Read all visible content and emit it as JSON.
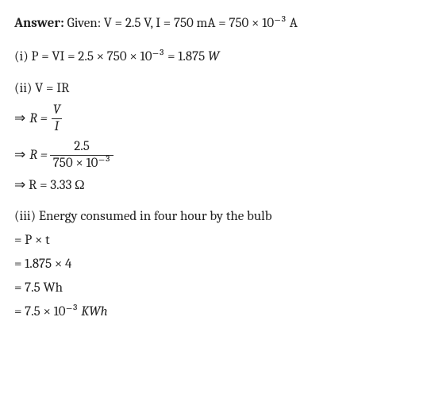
{
  "answer": {
    "label": "Answer:",
    "given": "Given: V = 2.5 V, I = 750 mA = 750 × 10⁻³ A"
  },
  "part1": {
    "eq": "(i) P = VI = 2.5 × 750 × 10⁻³ = 1.875",
    "unit": "W"
  },
  "part2": {
    "heading": "(ii) V = IR",
    "step1": {
      "lhs": "R =",
      "num": "V",
      "den": "I"
    },
    "step2": {
      "lhs": "R =",
      "num": "2.5",
      "den": "750 × 10⁻³"
    },
    "step3": "⇒ R = 3.33 Ω"
  },
  "part3": {
    "heading": "(iii) Energy consumed in four hour by the bulb",
    "l1": "= P × t",
    "l2": "= 1.875 × 4",
    "l3": "= 7.5 Wh",
    "l4a": "= 7.5 × 10⁻³",
    "l4b": "KWh"
  },
  "sym": {
    "arrow": "⇒"
  }
}
